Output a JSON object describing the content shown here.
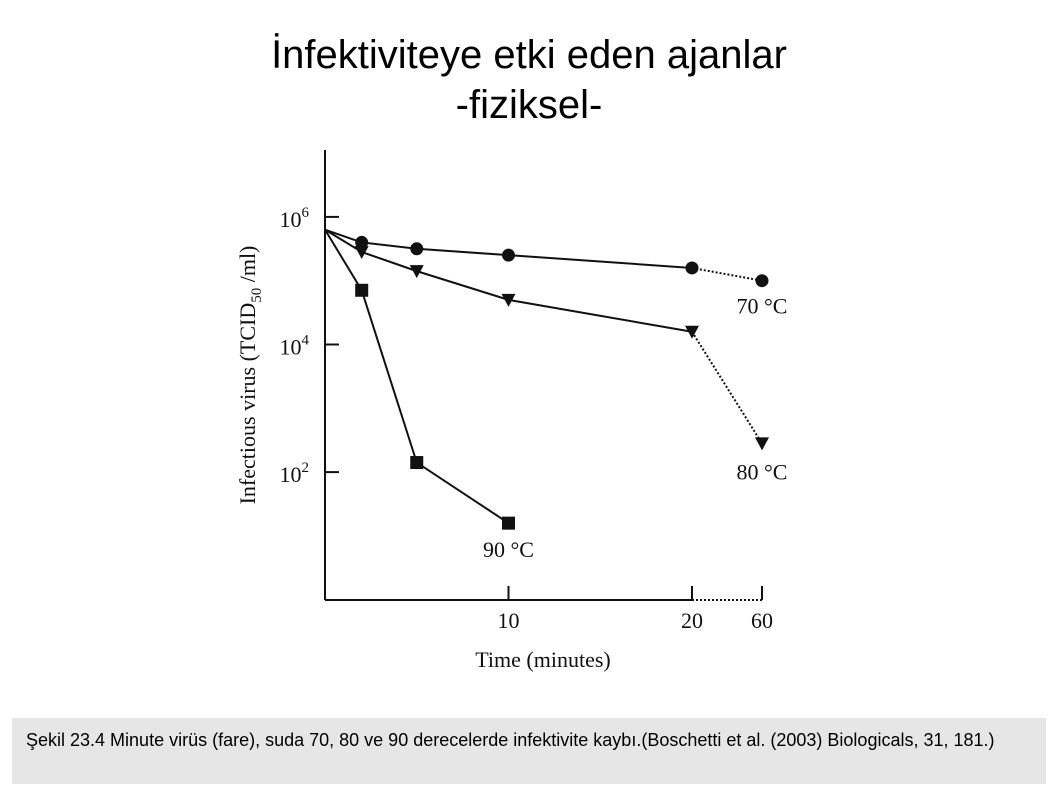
{
  "slide": {
    "title_line1": "İnfektiviteye etki eden ajanlar",
    "title_line2": "-fiziksel-",
    "caption": "Şekil 23.4 Minute virüs (fare), suda 70, 80 ve 90 derecelerde infektivite kaybı.(Boschetti et al. (2003) Biologicals, 31, 181.)"
  },
  "chart_data": {
    "type": "line",
    "title": "",
    "xlabel": "Time (minutes)",
    "ylabel_main": "Infectious virus (TCID",
    "ylabel_sub": "50",
    "ylabel_tail": " /ml)",
    "y_scale": "log10",
    "ylim_exponent": [
      0,
      7
    ],
    "y_ticks": [
      {
        "base": "10",
        "exp": "6",
        "exponent_value": 6
      },
      {
        "base": "10",
        "exp": "4",
        "exponent_value": 4
      },
      {
        "base": "10",
        "exp": "2",
        "exponent_value": 2
      }
    ],
    "x_ticks": [
      "10",
      "20",
      "60"
    ],
    "x_axis_break": "between 20 and 60",
    "series": [
      {
        "name": "70 °C",
        "label": "70 °C",
        "marker": "circle",
        "x": [
          0,
          2,
          5,
          10,
          20,
          60
        ],
        "log10_y": [
          5.8,
          5.6,
          5.5,
          5.4,
          5.2,
          5.0
        ],
        "dotted_last_segment": true
      },
      {
        "name": "80 °C",
        "label": "80 °C",
        "marker": "triangle-down",
        "x": [
          0,
          2,
          5,
          10,
          20,
          60
        ],
        "log10_y": [
          5.8,
          5.45,
          5.15,
          4.7,
          4.2,
          2.45
        ],
        "dotted_last_segment": true
      },
      {
        "name": "90 °C",
        "label": "90 °C",
        "marker": "square",
        "x": [
          0,
          2,
          5,
          10
        ],
        "log10_y": [
          5.8,
          4.85,
          2.15,
          1.2
        ],
        "dotted_last_segment": false
      }
    ]
  }
}
